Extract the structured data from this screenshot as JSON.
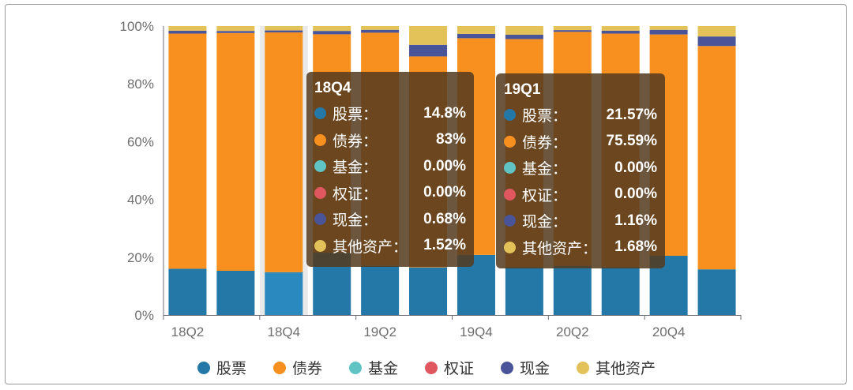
{
  "chart_data": {
    "type": "bar",
    "stacked": true,
    "categories": [
      "18Q2",
      "18Q3",
      "18Q4",
      "19Q1",
      "19Q2",
      "19Q3",
      "19Q4",
      "20Q1",
      "20Q2",
      "20Q3",
      "20Q4",
      "21Q1"
    ],
    "x_tick_labels": [
      "18Q2",
      "18Q4",
      "19Q2",
      "19Q4",
      "20Q2",
      "20Q4"
    ],
    "y_ticks": [
      "0%",
      "20%",
      "40%",
      "60%",
      "80%",
      "100%"
    ],
    "ylim": [
      0,
      100
    ],
    "series": [
      {
        "name": "股票",
        "color": "#2478a8",
        "values": [
          16.0,
          15.3,
          14.8,
          21.57,
          17.0,
          16.5,
          20.8,
          16.5,
          17.0,
          16.5,
          20.5,
          15.8
        ]
      },
      {
        "name": "债券",
        "color": "#f7901e",
        "values": [
          81.4,
          82.3,
          83.0,
          75.59,
          80.7,
          73.0,
          75.0,
          79.0,
          81.0,
          80.9,
          76.6,
          77.3
        ]
      },
      {
        "name": "基金",
        "color": "#61c4c4",
        "values": [
          0,
          0,
          0,
          0,
          0,
          0,
          0,
          0,
          0,
          0,
          0,
          0
        ]
      },
      {
        "name": "权证",
        "color": "#e0575f",
        "values": [
          0,
          0,
          0,
          0,
          0,
          0,
          0,
          0,
          0,
          0,
          0,
          0
        ]
      },
      {
        "name": "现金",
        "color": "#4a5499",
        "values": [
          1.0,
          0.7,
          0.68,
          1.16,
          1.0,
          4.0,
          1.5,
          1.5,
          0.6,
          1.0,
          1.6,
          3.3
        ]
      },
      {
        "name": "其他资产",
        "color": "#e3c359",
        "values": [
          1.6,
          1.7,
          1.52,
          1.68,
          1.3,
          6.5,
          2.7,
          3.0,
          1.4,
          1.6,
          1.3,
          3.6
        ]
      }
    ],
    "highlighted_category": "18Q4",
    "legend_position": "bottom",
    "grid": false
  },
  "tooltips": [
    {
      "title": "18Q4",
      "rows": [
        {
          "name": "股票：",
          "value": "14.8%",
          "color": "#2478a8"
        },
        {
          "name": "债券：",
          "value": "83%",
          "color": "#f7901e"
        },
        {
          "name": "基金：",
          "value": "0.00%",
          "color": "#61c4c4"
        },
        {
          "name": "权证：",
          "value": "0.00%",
          "color": "#e0575f"
        },
        {
          "name": "现金：",
          "value": "0.68%",
          "color": "#4a5499"
        },
        {
          "name": "其他资产：",
          "value": "1.52%",
          "color": "#e3c359"
        }
      ]
    },
    {
      "title": "19Q1",
      "rows": [
        {
          "name": "股票：",
          "value": "21.57%",
          "color": "#2478a8"
        },
        {
          "name": "债券：",
          "value": "75.59%",
          "color": "#f7901e"
        },
        {
          "name": "基金：",
          "value": "0.00%",
          "color": "#61c4c4"
        },
        {
          "name": "权证：",
          "value": "0.00%",
          "color": "#e0575f"
        },
        {
          "name": "现金：",
          "value": "1.16%",
          "color": "#4a5499"
        },
        {
          "name": "其他资产：",
          "value": "1.68%",
          "color": "#e3c359"
        }
      ]
    }
  ]
}
